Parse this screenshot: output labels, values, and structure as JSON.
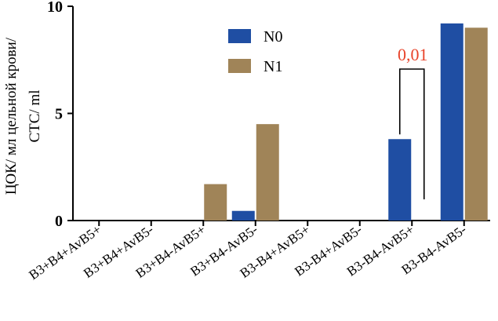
{
  "chart_data": {
    "type": "bar",
    "categories": [
      "B3+B4+AvB5+",
      "B3+B4+AvB5-",
      "B3+B4-AvB5+",
      "B3+B4-AvB5-",
      "B3-B4+AvB5+",
      "B3-B4+AvB5-",
      "B3-B4-AvB5+",
      "B3-B4-AvB5-"
    ],
    "series": [
      {
        "name": "N0",
        "color": "#1f4ea3",
        "values": [
          0,
          0,
          0,
          0.45,
          0,
          0,
          3.8,
          9.2
        ]
      },
      {
        "name": "N1",
        "color": "#a08458",
        "values": [
          0,
          0,
          1.7,
          4.5,
          0,
          0,
          0,
          9.0
        ]
      }
    ],
    "ylabel_lines": [
      "ЦОК/ мл цельной крови/",
      "CTC/ ml"
    ],
    "xlabel": "",
    "title": "",
    "ylim": [
      0,
      10
    ],
    "yticks": [
      0,
      5,
      10
    ],
    "legend_position": "top-center",
    "grid": false,
    "annotation": {
      "text": "0,01",
      "color": "#e8432a",
      "category_index": 6
    }
  }
}
